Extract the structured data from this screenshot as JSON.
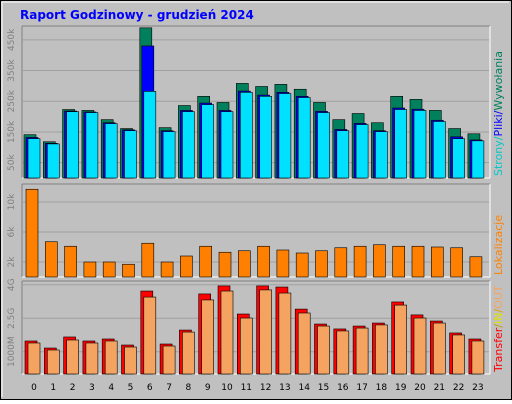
{
  "title": "Raport Godzinowy -  grudzień 2024",
  "chart_data": [
    {
      "type": "bar",
      "ylim": [
        0,
        495000
      ],
      "yticks": [
        {
          "value": 50000,
          "label": "50k"
        },
        {
          "value": 150000,
          "label": "150k"
        },
        {
          "value": 250000,
          "label": "250k"
        },
        {
          "value": 350000,
          "label": "350k"
        },
        {
          "value": 450000,
          "label": "450k"
        }
      ],
      "grid": true,
      "series": [
        {
          "name": "Wywołania",
          "color": "#00805c",
          "values": [
            141000,
            118000,
            223000,
            220000,
            190000,
            161000,
            489000,
            164000,
            236000,
            266000,
            246000,
            308000,
            298000,
            305000,
            289000,
            246000,
            190000,
            210000,
            180000,
            266000,
            256000,
            220000,
            161000,
            144000
          ]
        },
        {
          "name": "Pliki",
          "color": "#0000ff",
          "values": [
            132000,
            113000,
            218000,
            215000,
            180000,
            157000,
            430000,
            154000,
            220000,
            244000,
            220000,
            283000,
            270000,
            279000,
            266000,
            217000,
            158000,
            178000,
            154000,
            228000,
            224000,
            188000,
            134000,
            124000
          ]
        },
        {
          "name": "Strony",
          "color": "#00e0ff",
          "values": [
            128000,
            111000,
            216000,
            213000,
            177000,
            154000,
            282000,
            151000,
            216000,
            239000,
            216000,
            279000,
            266000,
            275000,
            262000,
            213000,
            154000,
            174000,
            151000,
            223000,
            220000,
            184000,
            128000,
            121000
          ]
        }
      ],
      "legend": [
        {
          "text": "Strony",
          "color": "#00c8c8"
        },
        {
          "text": "/",
          "color": "#00c8c8"
        },
        {
          "text": "Pliki",
          "color": "#0000ff"
        },
        {
          "text": "/",
          "color": "#0000ff"
        },
        {
          "text": "Wywołania",
          "color": "#00805c"
        }
      ]
    },
    {
      "type": "bar",
      "ylim": [
        0,
        12400
      ],
      "yticks": [
        {
          "value": 2000,
          "label": "2k"
        },
        {
          "value": 6000,
          "label": "6k"
        },
        {
          "value": 10000,
          "label": "10k"
        }
      ],
      "grid": true,
      "series": [
        {
          "name": "Lokalizacje",
          "color": "#ff8000",
          "values": [
            11700,
            4700,
            4100,
            2000,
            2000,
            1700,
            4500,
            2000,
            2800,
            4100,
            3300,
            3500,
            4100,
            3600,
            3200,
            3500,
            3900,
            4100,
            4300,
            4100,
            4100,
            4000,
            3900,
            2700
          ]
        }
      ],
      "legend": [
        {
          "text": "Lokalizacje",
          "color": "#ff8000"
        }
      ]
    },
    {
      "type": "bar",
      "ylim": [
        0,
        4170
      ],
      "yticks": [
        {
          "value": 1000,
          "label": "1000M"
        },
        {
          "value": 2500,
          "label": "2.5G"
        },
        {
          "value": 4000,
          "label": "4G"
        }
      ],
      "grid": true,
      "categories": [
        "0",
        "1",
        "2",
        "3",
        "4",
        "5",
        "6",
        "7",
        "8",
        "9",
        "10",
        "11",
        "12",
        "13",
        "14",
        "15",
        "16",
        "17",
        "18",
        "19",
        "20",
        "21",
        "22",
        "23"
      ],
      "series": [
        {
          "name": "Transfer",
          "color": "#ff0000",
          "values": [
            1480,
            1165,
            1660,
            1480,
            1570,
            1300,
            3720,
            1345,
            1970,
            3590,
            3950,
            2690,
            3950,
            3900,
            2910,
            2240,
            2020,
            2150,
            2285,
            3230,
            2650,
            2375,
            1840,
            1570
          ]
        },
        {
          "name": "OUT",
          "color": "#f4a460",
          "values": [
            1390,
            1076,
            1525,
            1390,
            1480,
            1210,
            3450,
            1255,
            1880,
            3320,
            3720,
            2510,
            3770,
            3630,
            2735,
            2150,
            1930,
            2060,
            2200,
            3090,
            2510,
            2285,
            1750,
            1480
          ]
        }
      ],
      "legend": [
        {
          "text": "Transfer",
          "color": "#ff0000"
        },
        {
          "text": "/",
          "color": "#c0a000"
        },
        {
          "text": "IN",
          "color": "#e0e000"
        },
        {
          "text": "/",
          "color": "#e0a000"
        },
        {
          "text": "OUT",
          "color": "#f4a460"
        }
      ]
    }
  ]
}
